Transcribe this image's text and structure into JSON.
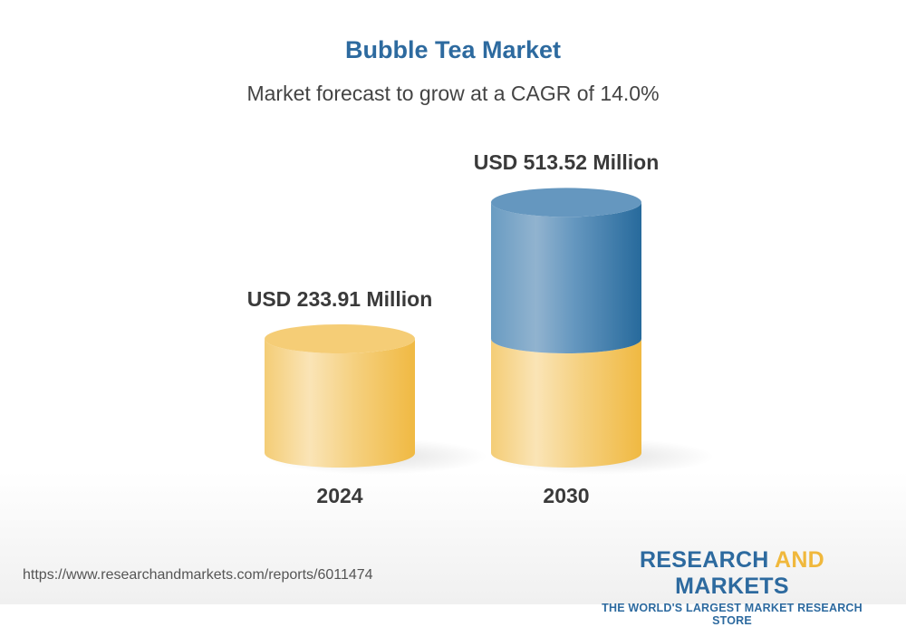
{
  "chart_data": {
    "type": "bar",
    "title": "Bubble Tea Market",
    "subtitle": "Market forecast to grow at a CAGR of 14.0%",
    "categories": [
      "2024",
      "2030"
    ],
    "values": [
      233.91,
      513.52
    ],
    "data_labels": [
      "USD 233.91 Million",
      "USD 513.52 Million"
    ],
    "unit": "USD Million",
    "colors": {
      "base": "#f2c15a",
      "growth": "#2d6a9f"
    },
    "grid": false,
    "legend": "none"
  },
  "footer": {
    "url": "https://www.researchandmarkets.com/reports/6011474",
    "logo_word1": "RESEARCH ",
    "logo_word2": "AND",
    "logo_word3": " MARKETS",
    "logo_tagline": "THE WORLD'S LARGEST MARKET RESEARCH STORE"
  }
}
